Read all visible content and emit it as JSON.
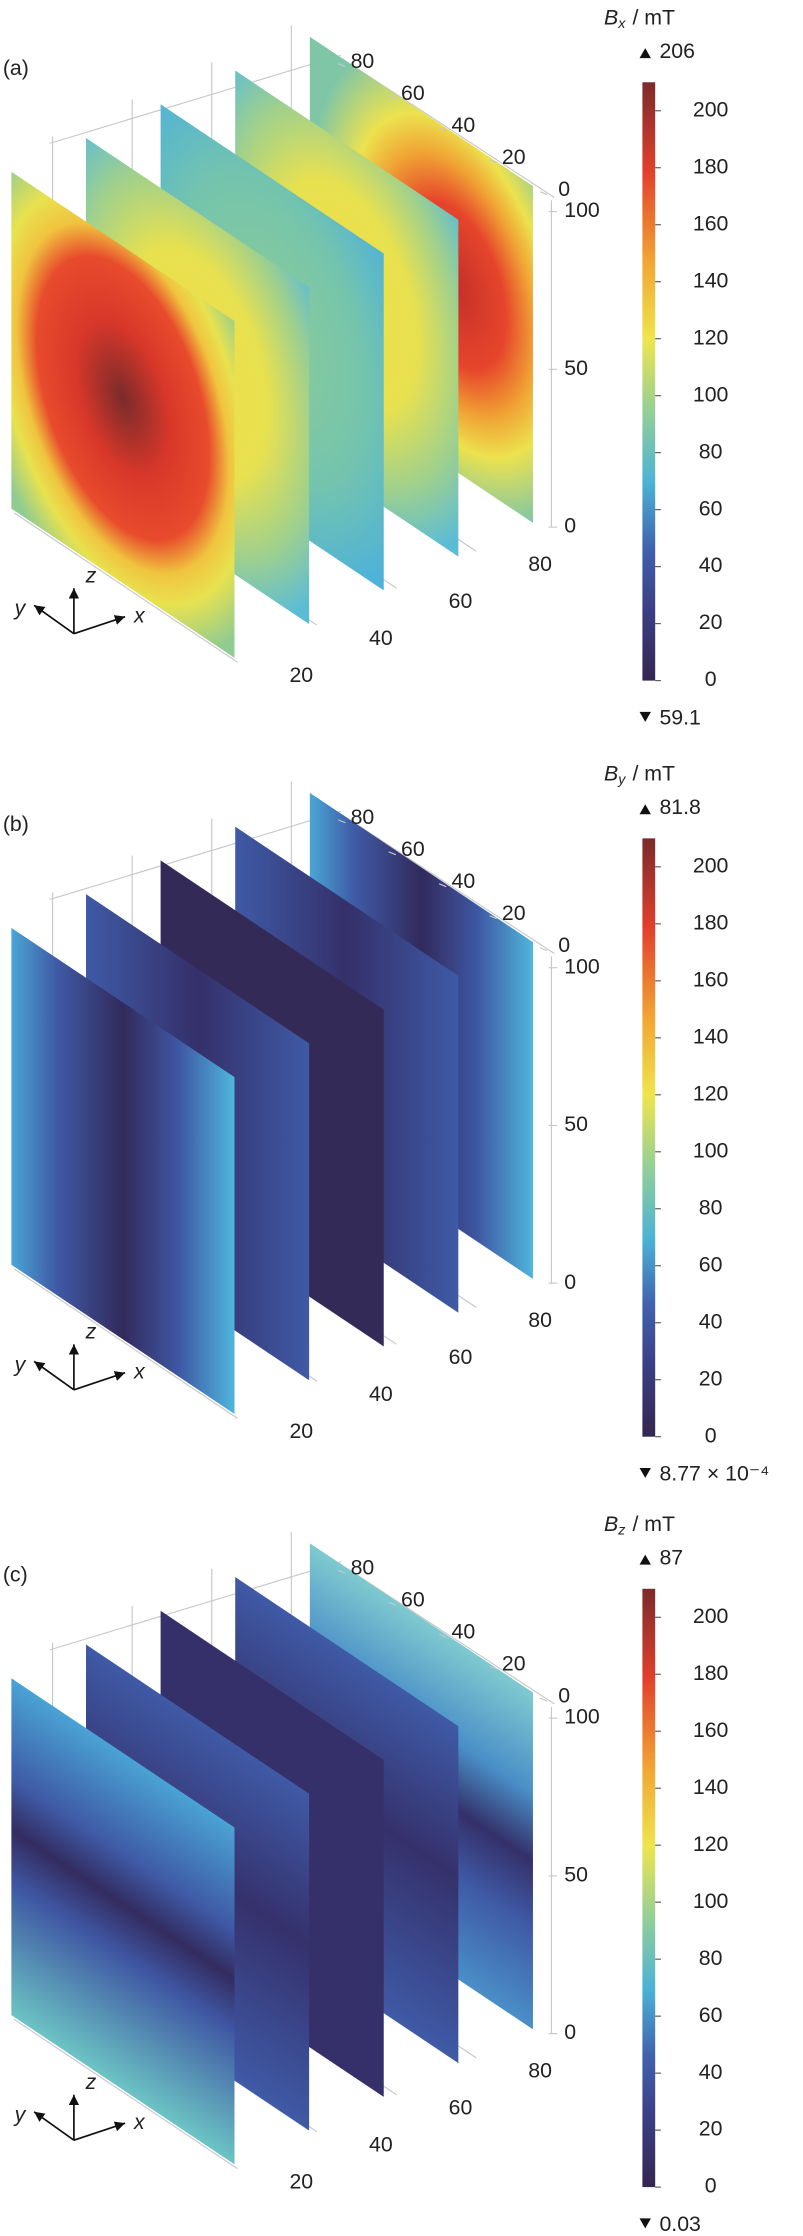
{
  "chart_data": [
    {
      "type": "slice3d",
      "label": "(a)",
      "field": "bx",
      "colorbar": {
        "symbol": "B",
        "subscript": "x",
        "unit": "/ mT",
        "max": 206,
        "min": 59.1,
        "clim": [
          0,
          210
        ],
        "ticks": [
          0,
          20,
          40,
          60,
          80,
          100,
          120,
          140,
          160,
          180,
          200
        ]
      },
      "xlim": [
        20,
        80
      ],
      "xticks": [
        20,
        40,
        60,
        80
      ],
      "ylim": [
        0,
        80
      ],
      "yticks": [
        0,
        20,
        40,
        60,
        80
      ],
      "zlim": [
        0,
        100
      ],
      "zticks": [
        0,
        50,
        100
      ],
      "axis_labels": {
        "x": "x",
        "y": "y",
        "z": "z"
      }
    },
    {
      "type": "slice3d",
      "label": "(b)",
      "field": "by",
      "colorbar": {
        "symbol": "B",
        "subscript": "y",
        "unit": "/ mT",
        "max": 81.8,
        "min": {
          "value": 0.000877,
          "label": "8.77 × 10⁻⁴"
        },
        "clim": [
          0,
          210
        ],
        "ticks": [
          0,
          20,
          40,
          60,
          80,
          100,
          120,
          140,
          160,
          180,
          200
        ]
      },
      "xlim": [
        20,
        80
      ],
      "xticks": [
        20,
        40,
        60,
        80
      ],
      "ylim": [
        0,
        80
      ],
      "yticks": [
        0,
        20,
        40,
        60,
        80
      ],
      "zlim": [
        0,
        100
      ],
      "zticks": [
        0,
        50,
        100
      ],
      "axis_labels": {
        "x": "x",
        "y": "y",
        "z": "z"
      }
    },
    {
      "type": "slice3d",
      "label": "(c)",
      "field": "bz",
      "colorbar": {
        "symbol": "B",
        "subscript": "z",
        "unit": "/ mT",
        "max": 87,
        "min": 0.03,
        "clim": [
          0,
          210
        ],
        "ticks": [
          0,
          20,
          40,
          60,
          80,
          100,
          120,
          140,
          160,
          180,
          200
        ]
      },
      "xlim": [
        20,
        80
      ],
      "xticks": [
        20,
        40,
        60,
        80
      ],
      "ylim": [
        0,
        80
      ],
      "yticks": [
        0,
        20,
        40,
        60,
        80
      ],
      "zlim": [
        0,
        100
      ],
      "zticks": [
        0,
        50,
        100
      ],
      "axis_labels": {
        "x": "x",
        "y": "y",
        "z": "z"
      }
    }
  ]
}
